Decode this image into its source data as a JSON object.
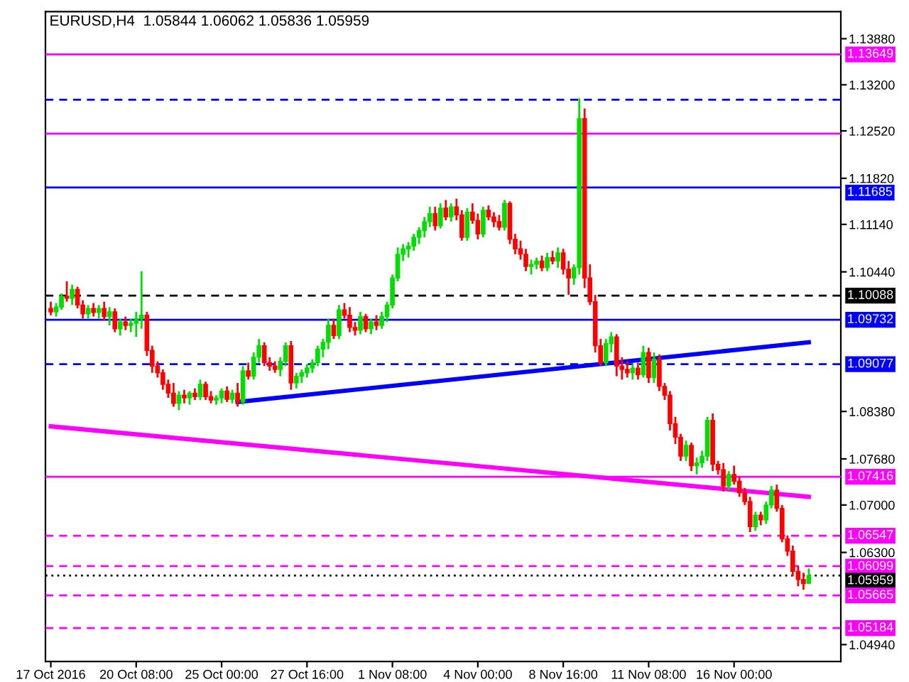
{
  "chart_data": {
    "type": "candlestick",
    "title": "EURUSD,H4  1.05844 1.06062 1.05836 1.05959",
    "categories": [
      "17 Oct 2016",
      null,
      null,
      null,
      null,
      null,
      null,
      null,
      null,
      null,
      null,
      null,
      null,
      null,
      null,
      null,
      "20 Oct 08:00",
      null,
      null,
      null,
      null,
      null,
      null,
      null,
      null,
      null,
      null,
      null,
      null,
      null,
      null,
      null,
      "25 Oct 00:00",
      null,
      null,
      null,
      null,
      null,
      null,
      null,
      null,
      null,
      null,
      null,
      null,
      null,
      null,
      null,
      "27 Oct 16:00",
      null,
      null,
      null,
      null,
      null,
      null,
      null,
      null,
      null,
      null,
      null,
      null,
      null,
      null,
      null,
      "1 Nov 08:00",
      null,
      null,
      null,
      null,
      null,
      null,
      null,
      null,
      null,
      null,
      null,
      null,
      null,
      null,
      null,
      "4 Nov 00:00",
      null,
      null,
      null,
      null,
      null,
      null,
      null,
      null,
      null,
      null,
      null,
      null,
      null,
      null,
      null,
      "8 Nov 16:00",
      null,
      null,
      null,
      null,
      null,
      null,
      null,
      null,
      null,
      null,
      null,
      null,
      null,
      null,
      null,
      "11 Nov 08:00",
      null,
      null,
      null,
      null,
      null,
      null,
      null,
      null,
      null,
      null,
      null,
      null,
      null,
      null,
      null,
      "16 Nov 00:00",
      null,
      null,
      null,
      null,
      null,
      null,
      null,
      null,
      null,
      null,
      null,
      null,
      null,
      null
    ],
    "ohlc": [
      [
        1.099,
        1.1,
        1.098,
        1.0985
      ],
      [
        1.0985,
        1.0998,
        1.0978,
        1.0992
      ],
      [
        1.0992,
        1.1012,
        1.0988,
        1.1008
      ],
      [
        1.1008,
        1.103,
        1.1,
        1.1005
      ],
      [
        1.1005,
        1.1025,
        1.0995,
        1.1018
      ],
      [
        1.1018,
        1.1022,
        1.099,
        1.0995
      ],
      [
        1.0995,
        1.1002,
        1.0975,
        1.0982
      ],
      [
        1.0982,
        1.0995,
        1.0975,
        1.099
      ],
      [
        1.099,
        1.0998,
        1.0978,
        1.0984
      ],
      [
        1.0984,
        1.0995,
        1.0975,
        1.099
      ],
      [
        1.099,
        1.1,
        1.0972,
        1.0978
      ],
      [
        1.0978,
        1.0992,
        1.0965,
        1.0985
      ],
      [
        1.0985,
        1.099,
        1.0955,
        1.096
      ],
      [
        1.096,
        1.0975,
        1.095,
        1.097
      ],
      [
        1.097,
        1.0978,
        1.0958,
        1.0965
      ],
      [
        1.0965,
        1.0975,
        1.0955,
        1.0968
      ],
      [
        1.0968,
        1.0985,
        1.0948,
        1.0975
      ],
      [
        1.0975,
        1.1045,
        1.096,
        1.098
      ],
      [
        1.098,
        1.0985,
        1.092,
        1.0928
      ],
      [
        1.0928,
        1.0935,
        1.0895,
        1.0905
      ],
      [
        1.0905,
        1.0912,
        1.0888,
        1.0895
      ],
      [
        1.0895,
        1.09,
        1.087,
        1.0878
      ],
      [
        1.0878,
        1.0885,
        1.0858,
        1.0865
      ],
      [
        1.0865,
        1.088,
        1.0845,
        1.085
      ],
      [
        1.085,
        1.0868,
        1.084,
        1.0862
      ],
      [
        1.0862,
        1.087,
        1.085,
        1.0858
      ],
      [
        1.0858,
        1.0868,
        1.0848,
        1.0865
      ],
      [
        1.0865,
        1.0872,
        1.0855,
        1.086
      ],
      [
        1.086,
        1.0885,
        1.0855,
        1.0878
      ],
      [
        1.0878,
        1.0882,
        1.0855,
        1.086
      ],
      [
        1.086,
        1.0868,
        1.085,
        1.0855
      ],
      [
        1.0855,
        1.0862,
        1.0848,
        1.0858
      ],
      [
        1.0858,
        1.0872,
        1.085,
        1.0868
      ],
      [
        1.0868,
        1.0875,
        1.0852,
        1.0856
      ],
      [
        1.0856,
        1.087,
        1.085,
        1.0865
      ],
      [
        1.0865,
        1.088,
        1.0845,
        1.0852
      ],
      [
        1.0852,
        1.0905,
        1.0848,
        1.0898
      ],
      [
        1.0898,
        1.091,
        1.0885,
        1.089
      ],
      [
        1.089,
        1.0925,
        1.0885,
        1.0918
      ],
      [
        1.0918,
        1.0945,
        1.091,
        1.0935
      ],
      [
        1.0935,
        1.094,
        1.0905,
        1.091
      ],
      [
        1.091,
        1.0918,
        1.0898,
        1.0905
      ],
      [
        1.0905,
        1.0912,
        1.0895,
        1.09
      ],
      [
        1.09,
        1.0918,
        1.089,
        1.0912
      ],
      [
        1.0912,
        1.094,
        1.0905,
        1.0935
      ],
      [
        1.0935,
        1.0942,
        1.087,
        1.088
      ],
      [
        1.088,
        1.0895,
        1.0872,
        1.089
      ],
      [
        1.089,
        1.09,
        1.088,
        1.0895
      ],
      [
        1.0895,
        1.0908,
        1.0888,
        1.0902
      ],
      [
        1.0902,
        1.0915,
        1.0895,
        1.091
      ],
      [
        1.091,
        1.0935,
        1.0905,
        1.093
      ],
      [
        1.093,
        1.0945,
        1.0918,
        1.094
      ],
      [
        1.094,
        1.0975,
        1.093,
        1.0965
      ],
      [
        1.0965,
        1.0975,
        1.0945,
        1.095
      ],
      [
        1.095,
        1.0995,
        1.0945,
        1.0988
      ],
      [
        1.0988,
        1.0998,
        1.0975,
        1.098
      ],
      [
        1.098,
        1.0992,
        1.0955,
        1.0962
      ],
      [
        1.0962,
        1.097,
        1.095,
        1.0958
      ],
      [
        1.0958,
        1.0985,
        1.0952,
        1.0978
      ],
      [
        1.0978,
        1.0982,
        1.0955,
        1.096
      ],
      [
        1.096,
        1.0975,
        1.0952,
        1.097
      ],
      [
        1.097,
        1.098,
        1.0958,
        1.0965
      ],
      [
        1.0965,
        1.0985,
        1.096,
        1.0978
      ],
      [
        1.0978,
        1.1,
        1.097,
        1.0995
      ],
      [
        1.0995,
        1.104,
        1.099,
        1.1035
      ],
      [
        1.1035,
        1.108,
        1.103,
        1.107
      ],
      [
        1.107,
        1.1085,
        1.106,
        1.1078
      ],
      [
        1.1078,
        1.1088,
        1.1065,
        1.1082
      ],
      [
        1.1082,
        1.11,
        1.1075,
        1.1095
      ],
      [
        1.1095,
        1.111,
        1.1085,
        1.1105
      ],
      [
        1.1105,
        1.1125,
        1.1095,
        1.1118
      ],
      [
        1.1118,
        1.114,
        1.111,
        1.113
      ],
      [
        1.113,
        1.114,
        1.1105,
        1.1112
      ],
      [
        1.1112,
        1.1145,
        1.1108,
        1.1138
      ],
      [
        1.1138,
        1.115,
        1.112,
        1.1125
      ],
      [
        1.1125,
        1.1145,
        1.1118,
        1.114
      ],
      [
        1.114,
        1.1152,
        1.112,
        1.1128
      ],
      [
        1.1128,
        1.1135,
        1.109,
        1.1095
      ],
      [
        1.1095,
        1.1138,
        1.109,
        1.1132
      ],
      [
        1.1132,
        1.1145,
        1.1115,
        1.112
      ],
      [
        1.112,
        1.113,
        1.1092,
        1.11
      ],
      [
        1.11,
        1.114,
        1.1095,
        1.1135
      ],
      [
        1.1135,
        1.1142,
        1.112,
        1.1125
      ],
      [
        1.1125,
        1.1132,
        1.111,
        1.1118
      ],
      [
        1.1118,
        1.1128,
        1.1105,
        1.111
      ],
      [
        1.111,
        1.115,
        1.1105,
        1.1145
      ],
      [
        1.1145,
        1.1148,
        1.1085,
        1.1092
      ],
      [
        1.1092,
        1.11,
        1.107,
        1.1078
      ],
      [
        1.1078,
        1.109,
        1.1062,
        1.107
      ],
      [
        1.107,
        1.1078,
        1.1045,
        1.1052
      ],
      [
        1.1052,
        1.1062,
        1.104,
        1.1055
      ],
      [
        1.1055,
        1.1065,
        1.1048,
        1.106
      ],
      [
        1.106,
        1.1068,
        1.1045,
        1.105
      ],
      [
        1.105,
        1.1072,
        1.1045,
        1.1065
      ],
      [
        1.1065,
        1.1075,
        1.1055,
        1.106
      ],
      [
        1.106,
        1.108,
        1.105,
        1.1072
      ],
      [
        1.1072,
        1.1078,
        1.104,
        1.1048
      ],
      [
        1.1048,
        1.106,
        1.101,
        1.1035
      ],
      [
        1.1035,
        1.1055,
        1.1025,
        1.105
      ],
      [
        1.105,
        1.13,
        1.104,
        1.127
      ],
      [
        1.127,
        1.1285,
        1.102,
        1.1035
      ],
      [
        1.1035,
        1.1055,
        1.0995,
        1.1
      ],
      [
        1.1,
        1.101,
        1.0925,
        1.0935
      ],
      [
        1.0935,
        1.0945,
        1.0905,
        1.091
      ],
      [
        1.091,
        1.0945,
        1.0905,
        1.0938
      ],
      [
        1.0938,
        1.0955,
        1.0925,
        1.0948
      ],
      [
        1.0948,
        1.0952,
        1.089,
        1.0905
      ],
      [
        1.0905,
        1.0918,
        1.0885,
        1.09
      ],
      [
        1.09,
        1.0912,
        1.0888,
        1.0895
      ],
      [
        1.0895,
        1.0908,
        1.0885,
        1.0902
      ],
      [
        1.0902,
        1.091,
        1.0885,
        1.0892
      ],
      [
        1.0892,
        1.0935,
        1.0888,
        1.0925
      ],
      [
        1.0925,
        1.0932,
        1.088,
        1.0888
      ],
      [
        1.0888,
        1.0925,
        1.088,
        1.0915
      ],
      [
        1.0915,
        1.0922,
        1.0868,
        1.0875
      ],
      [
        1.0875,
        1.088,
        1.0855,
        1.0862
      ],
      [
        1.0862,
        1.0868,
        1.081,
        1.082
      ],
      [
        1.082,
        1.083,
        1.079,
        1.08
      ],
      [
        1.08,
        1.0805,
        1.0765,
        1.0772
      ],
      [
        1.0772,
        1.0795,
        1.0765,
        1.0788
      ],
      [
        1.0788,
        1.0792,
        1.075,
        1.0758
      ],
      [
        1.0758,
        1.077,
        1.0745,
        1.0762
      ],
      [
        1.0762,
        1.078,
        1.0755,
        1.0772
      ],
      [
        1.0772,
        1.083,
        1.0765,
        1.0825
      ],
      [
        1.0825,
        1.0835,
        1.075,
        1.076
      ],
      [
        1.076,
        1.0765,
        1.0745,
        1.0752
      ],
      [
        1.0752,
        1.0762,
        1.072,
        1.0728
      ],
      [
        1.0728,
        1.075,
        1.0722,
        1.0745
      ],
      [
        1.0745,
        1.0758,
        1.073,
        1.0735
      ],
      [
        1.0735,
        1.0742,
        1.0712,
        1.0718
      ],
      [
        1.0718,
        1.0725,
        1.07,
        1.0705
      ],
      [
        1.0705,
        1.0712,
        1.066,
        1.0668
      ],
      [
        1.0668,
        1.069,
        1.0662,
        1.0685
      ],
      [
        1.0685,
        1.069,
        1.067,
        1.0678
      ],
      [
        1.0678,
        1.0705,
        1.0672,
        1.07
      ],
      [
        1.07,
        1.0728,
        1.0695,
        1.0722
      ],
      [
        1.0722,
        1.073,
        1.069,
        1.0695
      ],
      [
        1.0695,
        1.07,
        1.0645,
        1.065
      ],
      [
        1.065,
        1.0655,
        1.0625,
        1.0632
      ],
      [
        1.0632,
        1.064,
        1.0595,
        1.0602
      ],
      [
        1.0602,
        1.061,
        1.058,
        1.059
      ],
      [
        1.059,
        1.06,
        1.0575,
        1.0584
      ],
      [
        1.05844,
        1.06062,
        1.05836,
        1.05959
      ]
    ],
    "series": [
      {
        "type": "line",
        "color": "#ff00ff",
        "values": [
          1.0816,
          null,
          null,
          null,
          null,
          null,
          null,
          null,
          null,
          null,
          null,
          null,
          null,
          null,
          null,
          null,
          null,
          null,
          null,
          null,
          null,
          null,
          null,
          null,
          null,
          null,
          null,
          null,
          null,
          null,
          null,
          null,
          null,
          null,
          null,
          null,
          null,
          null,
          null,
          null,
          null,
          null,
          null,
          null,
          null,
          null,
          null,
          null,
          null,
          null,
          null,
          null,
          null,
          null,
          null,
          null,
          null,
          null,
          null,
          null,
          null,
          null,
          null,
          null,
          null,
          null,
          null,
          null,
          null,
          null,
          null,
          null,
          null,
          null,
          null,
          null,
          null,
          null,
          null,
          null,
          null,
          null,
          null,
          null,
          null,
          null,
          null,
          null,
          null,
          null,
          null,
          null,
          null,
          null,
          null,
          null,
          null,
          null,
          null,
          null,
          null,
          null,
          null,
          null,
          null,
          null,
          null,
          null,
          null,
          null,
          null,
          null,
          null,
          null,
          null,
          null,
          null,
          null,
          null,
          null,
          null,
          null,
          null,
          null,
          null,
          null,
          null,
          null,
          null,
          null,
          null,
          null,
          null,
          null,
          null,
          null,
          null,
          null,
          null,
          null,
          null,
          null,
          1.0712
        ]
      },
      {
        "type": "line",
        "color": "#0000ff",
        "values": [
          null,
          null,
          null,
          null,
          null,
          null,
          null,
          null,
          null,
          null,
          null,
          null,
          null,
          null,
          null,
          null,
          null,
          null,
          null,
          null,
          null,
          null,
          null,
          null,
          null,
          null,
          null,
          null,
          null,
          null,
          null,
          null,
          null,
          null,
          null,
          1.0852,
          null,
          null,
          null,
          null,
          null,
          null,
          null,
          null,
          null,
          null,
          null,
          null,
          null,
          null,
          null,
          null,
          null,
          null,
          null,
          null,
          null,
          null,
          null,
          null,
          null,
          null,
          null,
          null,
          null,
          null,
          null,
          null,
          null,
          null,
          null,
          null,
          null,
          null,
          null,
          null,
          null,
          null,
          null,
          null,
          null,
          null,
          null,
          null,
          null,
          null,
          null,
          null,
          null,
          null,
          null,
          null,
          null,
          null,
          null,
          null,
          null,
          null,
          null,
          null,
          null,
          null,
          null,
          null,
          null,
          null,
          null,
          null,
          null,
          null,
          null,
          null,
          null,
          null,
          null,
          null,
          null,
          null,
          null,
          null,
          null,
          null,
          null,
          null,
          null,
          null,
          null,
          null,
          null,
          null,
          null,
          null,
          null,
          null,
          null,
          null,
          null,
          null,
          null,
          null,
          null,
          null,
          1.094
        ]
      }
    ],
    "ylim": [
      1.0469,
      1.1428
    ],
    "yticks": [
      {
        "value": 1.1388,
        "label": "1.13880"
      },
      {
        "value": 1.132,
        "label": "1.13200"
      },
      {
        "value": 1.1252,
        "label": "1.12520"
      },
      {
        "value": 1.1182,
        "label": "1.11820"
      },
      {
        "value": 1.1114,
        "label": "1.11140"
      },
      {
        "value": 1.1044,
        "label": "1.10440"
      },
      {
        "value": 1.0838,
        "label": "1.08380"
      },
      {
        "value": 1.0768,
        "label": "1.07680"
      },
      {
        "value": 1.07,
        "label": "1.07000"
      },
      {
        "value": 1.063,
        "label": "1.06300"
      },
      {
        "value": 1.0494,
        "label": "1.04940"
      }
    ],
    "ref_lines": [
      {
        "axis": "y",
        "value": 1.13649,
        "label": "1.13649",
        "color": "#ff00ff",
        "line_style": "solid"
      },
      {
        "axis": "y",
        "value": 1.11685,
        "label": "1.11685",
        "color": "#0000ff",
        "line_style": "solid"
      },
      {
        "axis": "y",
        "value": 1.10088,
        "label": "1.10088",
        "color": "#000000",
        "line_style": "dashed"
      },
      {
        "axis": "y",
        "value": 1.09732,
        "label": "1.09732",
        "color": "#0000ff",
        "line_style": "solid"
      },
      {
        "axis": "y",
        "value": 1.09077,
        "label": "1.09077",
        "color": "#0000ff",
        "line_style": "dashed"
      },
      {
        "axis": "y",
        "value": 1.07416,
        "label": "1.07416",
        "color": "#ff00ff",
        "line_style": "solid"
      },
      {
        "axis": "y",
        "value": 1.06547,
        "label": "1.06547",
        "color": "#ff00ff",
        "line_style": "dashed"
      },
      {
        "axis": "y",
        "value": 1.06099,
        "label": "1.06099",
        "color": "#ff00ff",
        "line_style": "dashed"
      },
      {
        "axis": "y",
        "value": 1.05959,
        "label": "1.05959",
        "color": "#000000",
        "line_style": "dotted"
      },
      {
        "axis": "y",
        "value": 1.05665,
        "label": "1.05665",
        "color": "#ff00ff",
        "line_style": "dashed"
      },
      {
        "axis": "y",
        "value": 1.05184,
        "label": "1.05184",
        "color": "#ff00ff",
        "line_style": "dashed"
      },
      {
        "axis": "y",
        "value": 1.1248,
        "color": "#ff00ff",
        "line_style": "solid"
      },
      {
        "axis": "y",
        "value": 1.1298,
        "color": "#0000ff",
        "line_style": "dashed"
      }
    ],
    "colors": [
      "#ff0000",
      "#00dd00",
      "#00dd00",
      "#ff0000",
      "#00dd00",
      "#ff0000",
      "#ff0000",
      "#00dd00",
      "#ff0000",
      "#00dd00",
      "#ff0000",
      "#00dd00",
      "#ff0000",
      "#00dd00",
      "#ff0000",
      "#00dd00",
      "#00dd00",
      "#00dd00",
      "#ff0000",
      "#ff0000",
      "#ff0000",
      "#ff0000",
      "#ff0000",
      "#ff0000",
      "#00dd00",
      "#ff0000",
      "#00dd00",
      "#ff0000",
      "#00dd00",
      "#ff0000",
      "#ff0000",
      "#00dd00",
      "#00dd00",
      "#ff0000",
      "#00dd00",
      "#ff0000",
      "#00dd00",
      "#ff0000",
      "#00dd00",
      "#00dd00",
      "#ff0000",
      "#ff0000",
      "#ff0000",
      "#00dd00",
      "#00dd00",
      "#ff0000",
      "#00dd00",
      "#00dd00",
      "#00dd00",
      "#00dd00",
      "#00dd00",
      "#00dd00",
      "#00dd00",
      "#ff0000",
      "#00dd00",
      "#ff0000",
      "#ff0000",
      "#ff0000",
      "#00dd00",
      "#ff0000",
      "#00dd00",
      "#ff0000",
      "#00dd00",
      "#00dd00",
      "#00dd00",
      "#00dd00",
      "#00dd00",
      "#00dd00",
      "#00dd00",
      "#00dd00",
      "#00dd00",
      "#00dd00",
      "#ff0000",
      "#00dd00",
      "#ff0000",
      "#00dd00",
      "#ff0000",
      "#ff0000",
      "#00dd00",
      "#ff0000",
      "#ff0000",
      "#00dd00",
      "#ff0000",
      "#ff0000",
      "#ff0000",
      "#00dd00",
      "#ff0000",
      "#ff0000",
      "#ff0000",
      "#ff0000",
      "#00dd00",
      "#00dd00",
      "#ff0000",
      "#00dd00",
      "#ff0000",
      "#00dd00",
      "#ff0000",
      "#ff0000",
      "#00dd00",
      "#00dd00",
      "#ff0000",
      "#ff0000",
      "#ff0000",
      "#ff0000",
      "#00dd00",
      "#00dd00",
      "#ff0000",
      "#ff0000",
      "#ff0000",
      "#00dd00",
      "#ff0000",
      "#00dd00",
      "#ff0000",
      "#00dd00",
      "#ff0000",
      "#ff0000",
      "#ff0000",
      "#ff0000",
      "#ff0000",
      "#00dd00",
      "#ff0000",
      "#00dd00",
      "#00dd00",
      "#00dd00",
      "#ff0000",
      "#ff0000",
      "#ff0000",
      "#00dd00",
      "#ff0000",
      "#ff0000",
      "#ff0000",
      "#ff0000",
      "#00dd00",
      "#ff0000",
      "#00dd00",
      "#00dd00",
      "#ff0000",
      "#ff0000",
      "#ff0000",
      "#ff0000",
      "#ff0000",
      "#ff0000",
      "#00dd00"
    ],
    "grid": false,
    "legend": false
  }
}
